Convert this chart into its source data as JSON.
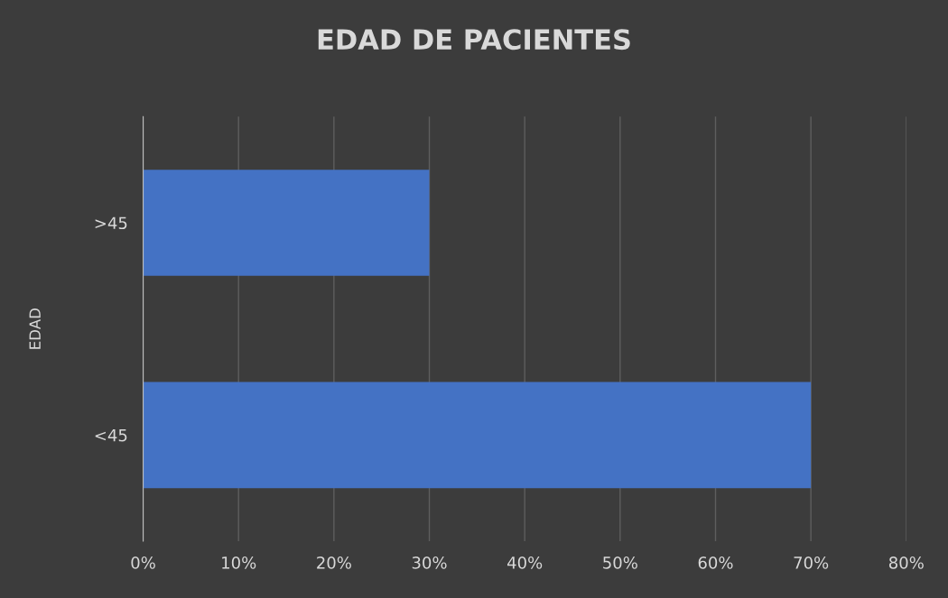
{
  "chart_data": {
    "type": "bar",
    "title": "EDAD DE PACIENTES",
    "ylabel": "EDAD",
    "orientation": "horizontal",
    "categories": [
      ">45",
      "<45"
    ],
    "series": [
      {
        "color": "#4472c4",
        "values": [
          30,
          70
        ]
      }
    ],
    "xlim": [
      0,
      80
    ],
    "xticks": [
      {
        "value": 0,
        "label": "0%"
      },
      {
        "value": 10,
        "label": "10%"
      },
      {
        "value": 20,
        "label": "20%"
      },
      {
        "value": 30,
        "label": "30%"
      },
      {
        "value": 40,
        "label": "40%"
      },
      {
        "value": 50,
        "label": "50%"
      },
      {
        "value": 60,
        "label": "60%"
      },
      {
        "value": 70,
        "label": "70%"
      },
      {
        "value": 80,
        "label": "80%"
      }
    ],
    "grid": "x"
  }
}
